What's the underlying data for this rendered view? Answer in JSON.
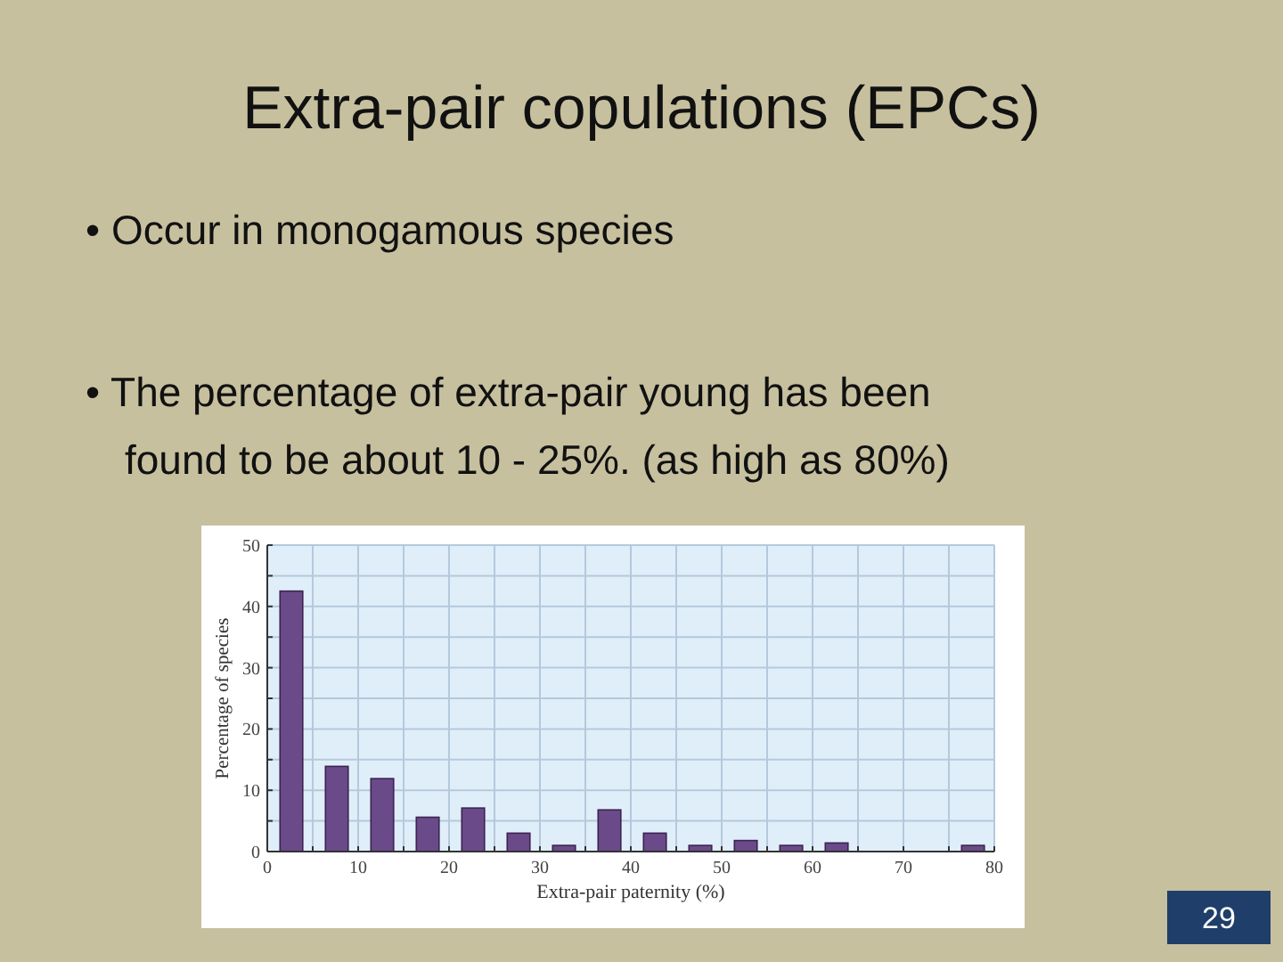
{
  "chart_data": {
    "type": "histogram",
    "title": "Extra-pair copulations (EPCs)",
    "annotations": [
      "• Occur in monogamous species",
      "• The percentage of extra-pair young has been found to be about 10 - 25%. (as high as 80%)",
      "29"
    ],
    "xlabel": "Extra-pair paternity (%)",
    "ylabel": "Percentage of species",
    "bins": [
      0,
      5,
      10,
      15,
      20,
      25,
      30,
      35,
      40,
      45,
      50,
      55,
      60,
      65,
      70,
      75,
      80
    ],
    "values": [
      42.5,
      13.9,
      11.9,
      5.6,
      7.1,
      3.0,
      1.0,
      6.8,
      3.0,
      1.0,
      1.8,
      1.0,
      1.4,
      0,
      0,
      1.0
    ],
    "color": "#6b4a8a",
    "xlim": [
      0,
      80
    ],
    "ylim": [
      0,
      50
    ],
    "xticks": [
      0,
      {
        "value": 5,
        "label": null
      },
      10,
      {
        "value": 15,
        "label": null
      },
      20,
      {
        "value": 25,
        "label": null
      },
      30,
      {
        "value": 35,
        "label": null
      },
      40,
      {
        "value": 45,
        "label": null
      },
      50,
      {
        "value": 55,
        "label": null
      },
      60,
      {
        "value": 65,
        "label": null
      },
      70,
      {
        "value": 75,
        "label": null
      },
      80
    ],
    "yticks": [
      0,
      {
        "value": 5,
        "label": null
      },
      10,
      {
        "value": 15,
        "label": null
      },
      20,
      {
        "value": 25,
        "label": null
      },
      30,
      {
        "value": 35,
        "label": null
      },
      40,
      {
        "value": 45,
        "label": null
      },
      50
    ],
    "grid": true
  }
}
